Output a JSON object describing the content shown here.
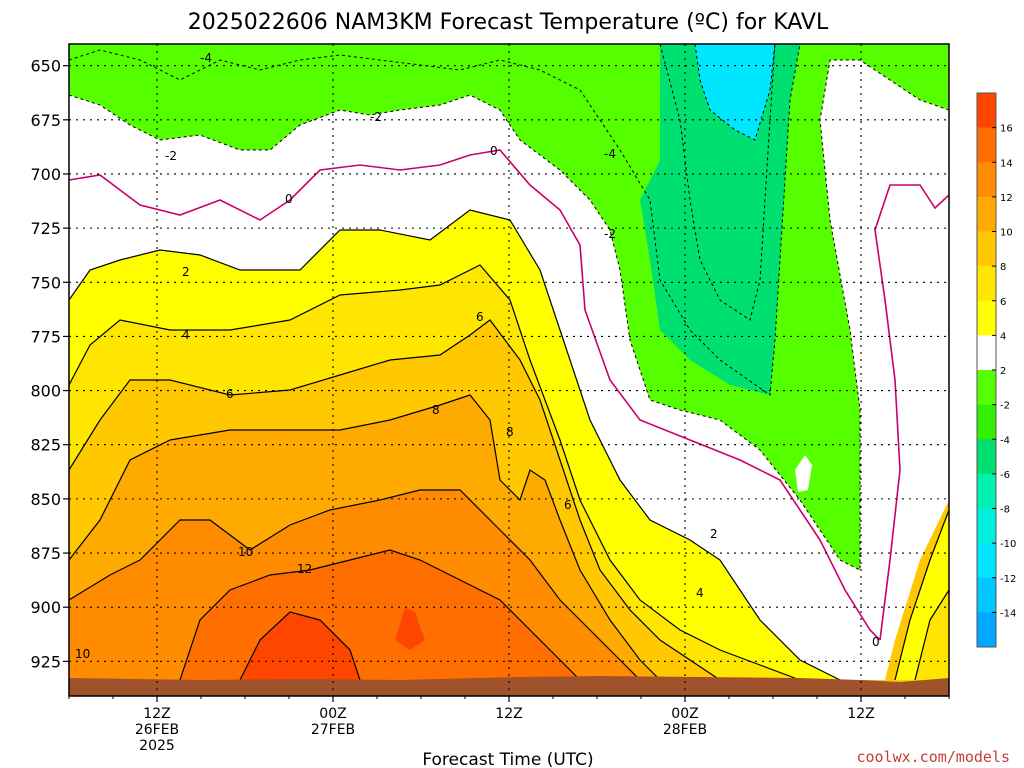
{
  "title": "2025022606  NAM3KM Forecast Temperature (ºC) for KAVL",
  "credit": "coolwx.com/models",
  "chart_data": {
    "type": "heatmap",
    "title": "2025022606  NAM3KM Forecast Temperature (ºC) for KAVL",
    "xlabel": "Forecast Time (UTC)",
    "ylabel": "",
    "x_ticks": [
      {
        "lines": [
          "12Z",
          "26FEB",
          "2025"
        ],
        "hour": 6
      },
      {
        "lines": [
          "00Z",
          "27FEB"
        ],
        "hour": 18
      },
      {
        "lines": [
          "12Z"
        ],
        "hour": 30
      },
      {
        "lines": [
          "00Z",
          "28FEB"
        ],
        "hour": 42
      },
      {
        "lines": [
          "12Z"
        ],
        "hour": 54
      }
    ],
    "xlim_hours": [
      0,
      60
    ],
    "y_ticks": [
      650,
      675,
      700,
      725,
      750,
      775,
      800,
      825,
      850,
      875,
      900,
      925
    ],
    "ylim_mb": [
      640,
      941
    ],
    "colorbar": {
      "levels": [
        -16,
        -14,
        -12,
        -10,
        -8,
        -6,
        -4,
        -2,
        2,
        4,
        6,
        8,
        10,
        12,
        14,
        16,
        18
      ],
      "colors": [
        "#00a8ff",
        "#00c8ff",
        "#00e6ff",
        "#00f0e0",
        "#00f0b0",
        "#00e070",
        "#33f000",
        "#55ff00",
        "#ffffff",
        "#ffff00",
        "#ffe600",
        "#ffc800",
        "#ffaa00",
        "#ff8c00",
        "#ff6e00",
        "#ff4600"
      ],
      "tick_labels": [
        "-14",
        "-12",
        "-10",
        "-8",
        "-6",
        "-4",
        "-2",
        "2",
        "4",
        "6",
        "8",
        "10",
        "12",
        "14",
        "16"
      ]
    },
    "contour_labels": [
      "-4",
      "-2",
      "-2",
      "0",
      "0",
      "-2",
      "-4",
      "2",
      "4",
      "6",
      "8",
      "6",
      "8",
      "10",
      "12",
      "10",
      "6",
      "4",
      "2",
      "0"
    ]
  }
}
